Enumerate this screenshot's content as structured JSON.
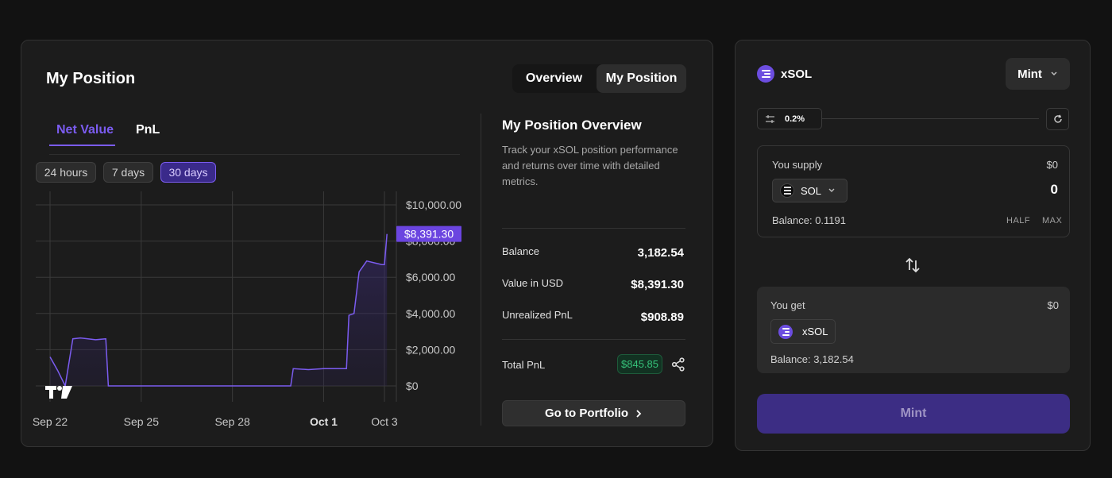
{
  "position_card": {
    "title": "My Position",
    "view_tabs": [
      "Overview",
      "My Position"
    ],
    "active_view": "My Position",
    "chart_tabs": [
      "Net Value",
      "PnL"
    ],
    "active_chart_tab": "Net Value",
    "ranges": [
      "24 hours",
      "7 days",
      "30 days"
    ],
    "active_range": "30 days"
  },
  "chart_data": {
    "type": "line",
    "x_tick_labels": [
      "Sep 22",
      "Sep 25",
      "Sep 28",
      "Oct 1",
      "Oct 3"
    ],
    "y_tick_labels": [
      "$10,000.00",
      "$8,000.00",
      "$6,000.00",
      "$4,000.00",
      "$2,000.00",
      "$0"
    ],
    "ylim": [
      0,
      10000
    ],
    "xlim": [
      "2024-09-22",
      "2024-10-03"
    ],
    "last_value_label": "$8,391.30",
    "last_value": 8391.3,
    "series": [
      {
        "values": [
          {
            "x": "2024-09-22",
            "y": 1600
          },
          {
            "x": "2024-09-22T06:00",
            "y": 850
          },
          {
            "x": "2024-09-22T12:00",
            "y": 0
          },
          {
            "x": "2024-09-22T18:00",
            "y": 2600
          },
          {
            "x": "2024-09-23",
            "y": 2650
          },
          {
            "x": "2024-09-23T12:00",
            "y": 2550
          },
          {
            "x": "2024-09-23T20:00",
            "y": 2600
          },
          {
            "x": "2024-09-23T22:00",
            "y": 0
          },
          {
            "x": "2024-09-29T22:00",
            "y": 0
          },
          {
            "x": "2024-09-30",
            "y": 950
          },
          {
            "x": "2024-09-30T12:00",
            "y": 900
          },
          {
            "x": "2024-10-01",
            "y": 950
          },
          {
            "x": "2024-10-01T18:00",
            "y": 950
          },
          {
            "x": "2024-10-01T20:00",
            "y": 3900
          },
          {
            "x": "2024-10-02",
            "y": 4000
          },
          {
            "x": "2024-10-02T04:00",
            "y": 6300
          },
          {
            "x": "2024-10-02T10:00",
            "y": 6900
          },
          {
            "x": "2024-10-02T16:00",
            "y": 6800
          },
          {
            "x": "2024-10-02T22:00",
            "y": 6700
          },
          {
            "x": "2024-10-03",
            "y": 6700
          },
          {
            "x": "2024-10-03T02:00",
            "y": 8391.3
          }
        ]
      }
    ],
    "line_color": "#7b5cf0",
    "grid": true
  },
  "overview": {
    "title": "My Position Overview",
    "description": "Track your xSOL position performance and returns over time with detailed metrics.",
    "stats": [
      {
        "label": "Balance",
        "value": "3,182.54"
      },
      {
        "label": "Value in USD",
        "value": "$8,391.30"
      },
      {
        "label": "Unrealized PnL",
        "value": "$908.89"
      }
    ],
    "total_pnl_label": "Total PnL",
    "total_pnl_value": "$845.85",
    "portfolio_button": "Go to Portfolio"
  },
  "mint_card": {
    "token": "xSOL",
    "mode": "Mint",
    "slippage": "0.2%",
    "supply": {
      "label": "You supply",
      "usd": "$0",
      "token": "SOL",
      "amount": "0",
      "balance": "Balance: 0.1191",
      "half": "HALF",
      "max": "MAX"
    },
    "get": {
      "label": "You get",
      "usd": "$0",
      "token": "xSOL",
      "balance": "Balance: 3,182.54"
    },
    "action_button": "Mint"
  },
  "colors": {
    "accent": "#7b5cf0",
    "positive": "#36c27a",
    "mint_button": "#3c2d84"
  }
}
